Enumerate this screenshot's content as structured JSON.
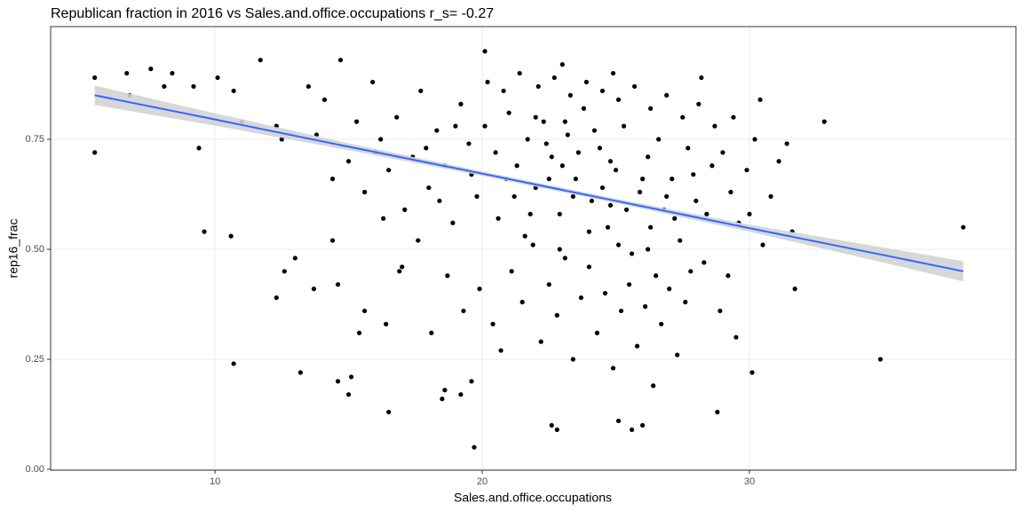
{
  "chart_data": {
    "type": "scatter",
    "title": "Republican fraction in 2016 vs Sales.and.office.occupations  r_s= -0.27",
    "x_label": "Sales.and.office.occupations",
    "y_label": "rep16_frac",
    "xlim": [
      3.85,
      39.97
    ],
    "ylim": [
      -0.002,
      1.006
    ],
    "xticks": [
      10,
      20,
      30
    ],
    "yticks": [
      {
        "value": 0,
        "label": "0.00"
      },
      {
        "value": 0.25,
        "label": "0.25"
      },
      {
        "value": 0.5,
        "label": "0.50"
      },
      {
        "value": 0.75,
        "label": "0.75"
      }
    ],
    "grid": true,
    "series": [
      {
        "color": "#000000",
        "x": [
          5.5,
          5.5,
          6.7,
          6.8,
          7.6,
          8.1,
          8.4,
          9.2,
          9.4,
          9.6,
          10.1,
          10.6,
          10.7,
          10.7,
          11.0,
          11.7,
          12.3,
          12.5,
          12.3,
          12.6,
          13.0,
          13.2,
          13.7,
          14.4,
          14.6,
          14.6,
          15.0,
          15.1,
          15.4,
          15.6,
          16.4,
          16.5,
          16.9,
          18.5,
          18.6,
          19.2,
          19.6,
          19.7,
          20.1,
          22.6,
          22.8,
          25.1,
          25.6,
          26.0,
          28.8,
          30.1,
          31.6,
          31.7,
          32.8,
          34.9,
          38.0,
          31.4,
          30.4,
          28.2,
          24.9,
          23.0,
          29.4,
          20.1,
          20.5,
          21.0,
          21.3,
          21.7,
          22.0,
          22.3,
          22.6,
          22.9,
          23.2,
          23.5,
          23.8,
          24.1,
          24.4,
          24.7,
          25.0,
          25.3,
          25.6,
          25.9,
          26.2,
          26.5,
          26.8,
          27.1,
          27.4,
          27.7,
          28.0,
          28.3,
          28.6,
          19.8,
          19.5,
          19.2,
          18.9,
          18.6,
          18.3,
          18.0,
          17.7,
          17.4,
          17.1,
          16.8,
          16.5,
          16.2,
          15.9,
          15.6,
          15.3,
          15.0,
          14.7,
          14.4,
          14.1,
          13.8,
          13.5,
          21.1,
          21.5,
          21.9,
          22.2,
          22.5,
          22.8,
          23.1,
          23.4,
          23.7,
          24.0,
          24.3,
          24.6,
          24.9,
          25.2,
          25.5,
          25.8,
          26.1,
          26.4,
          26.7,
          27.0,
          27.3,
          27.6,
          20.4,
          20.7,
          19.9,
          19.3,
          18.7,
          18.1,
          17.6,
          17.0,
          16.3,
          20.2,
          20.8,
          21.4,
          22.1,
          22.7,
          23.3,
          23.9,
          24.5,
          25.1,
          25.7,
          26.3,
          26.9,
          27.5,
          28.1,
          28.7,
          29.0,
          29.3,
          29.6,
          29.9,
          30.2,
          30.5,
          30.8,
          31.1,
          28.9,
          29.2,
          29.5,
          30.0,
          22.4,
          23.0,
          23.6,
          24.2,
          24.8,
          21.2,
          21.8,
          22.0,
          23.4,
          24.5,
          25.4,
          26.0,
          26.6,
          27.2,
          21.6,
          22.9,
          24.0,
          25.1,
          26.3,
          20.6,
          19.6,
          18.4,
          27.9,
          28.4,
          23.1,
          22.5,
          24.8,
          26.9,
          20.9,
          19.0,
          17.9,
          16.0,
          27.8,
          26.2
        ],
        "y": [
          0.89,
          0.72,
          0.9,
          0.85,
          0.91,
          0.87,
          0.9,
          0.87,
          0.73,
          0.54,
          0.89,
          0.53,
          0.86,
          0.24,
          0.79,
          0.93,
          0.78,
          0.75,
          0.39,
          0.45,
          0.48,
          0.22,
          0.41,
          0.52,
          0.2,
          0.42,
          0.17,
          0.21,
          0.31,
          0.36,
          0.33,
          0.13,
          0.45,
          0.16,
          0.18,
          0.17,
          0.2,
          0.05,
          0.95,
          0.1,
          0.09,
          0.11,
          0.09,
          0.1,
          0.13,
          0.22,
          0.54,
          0.41,
          0.79,
          0.25,
          0.55,
          0.74,
          0.84,
          0.89,
          0.9,
          0.92,
          0.8,
          0.78,
          0.72,
          0.81,
          0.69,
          0.75,
          0.64,
          0.79,
          0.71,
          0.58,
          0.76,
          0.66,
          0.82,
          0.61,
          0.73,
          0.55,
          0.68,
          0.78,
          0.49,
          0.63,
          0.71,
          0.44,
          0.59,
          0.66,
          0.52,
          0.73,
          0.61,
          0.47,
          0.69,
          0.62,
          0.74,
          0.83,
          0.56,
          0.69,
          0.77,
          0.64,
          0.86,
          0.71,
          0.59,
          0.8,
          0.68,
          0.75,
          0.88,
          0.63,
          0.79,
          0.7,
          0.93,
          0.66,
          0.84,
          0.76,
          0.87,
          0.45,
          0.38,
          0.51,
          0.29,
          0.42,
          0.35,
          0.48,
          0.25,
          0.39,
          0.46,
          0.31,
          0.4,
          0.23,
          0.36,
          0.42,
          0.28,
          0.37,
          0.19,
          0.33,
          0.41,
          0.26,
          0.38,
          0.33,
          0.27,
          0.41,
          0.36,
          0.44,
          0.31,
          0.52,
          0.46,
          0.57,
          0.88,
          0.86,
          0.9,
          0.87,
          0.89,
          0.85,
          0.88,
          0.86,
          0.84,
          0.87,
          0.82,
          0.85,
          0.8,
          0.83,
          0.78,
          0.72,
          0.63,
          0.56,
          0.68,
          0.75,
          0.51,
          0.62,
          0.7,
          0.36,
          0.44,
          0.3,
          0.58,
          0.74,
          0.69,
          0.72,
          0.77,
          0.7,
          0.62,
          0.58,
          0.8,
          0.62,
          0.64,
          0.59,
          0.66,
          0.75,
          0.57,
          0.53,
          0.5,
          0.54,
          0.51,
          0.55,
          0.57,
          0.67,
          0.61,
          0.67,
          0.58,
          0.79,
          0.66,
          0.6,
          0.62,
          0.66,
          0.78,
          0.73,
          0.72,
          0.45,
          0.5
        ]
      }
    ],
    "fit": {
      "color": "#3366ff",
      "band_color": "#d3d3d3",
      "x": [
        5.5,
        10,
        15,
        20,
        25,
        30,
        35,
        38
      ],
      "y": [
        0.85,
        0.795,
        0.733,
        0.672,
        0.61,
        0.548,
        0.487,
        0.45
      ],
      "lower": [
        0.828,
        0.781,
        0.725,
        0.667,
        0.605,
        0.54,
        0.47,
        0.427
      ],
      "upper": [
        0.872,
        0.809,
        0.741,
        0.677,
        0.615,
        0.556,
        0.504,
        0.473
      ]
    }
  }
}
